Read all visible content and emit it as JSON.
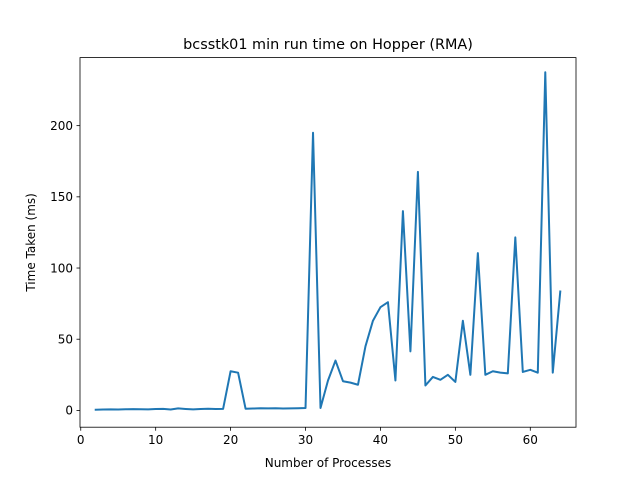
{
  "chart_data": {
    "type": "line",
    "title": "bcsstk01 min run time on Hopper (RMA)",
    "xlabel": "Number of Processes",
    "ylabel": "Time Taken (ms)",
    "xlim": [
      -0.1,
      66.1
    ],
    "ylim": [
      -11.8,
      247.8
    ],
    "xticks": [
      0,
      10,
      20,
      30,
      40,
      50,
      60
    ],
    "yticks": [
      0,
      50,
      100,
      150,
      200
    ],
    "grid": false,
    "color": "#1f77b4",
    "series": [
      {
        "x": [
          2,
          3,
          4,
          5,
          6,
          7,
          8,
          9,
          10,
          11,
          12,
          13,
          14,
          15,
          16,
          17,
          18,
          19,
          20,
          21,
          22,
          23,
          24,
          25,
          26,
          27,
          28,
          29,
          30,
          31,
          32,
          33,
          34,
          35,
          36,
          37,
          38,
          39,
          40,
          41,
          42,
          43,
          44,
          45,
          46,
          47,
          48,
          49,
          50,
          51,
          52,
          53,
          54,
          55,
          56,
          57,
          58,
          59,
          60,
          61,
          62,
          63,
          64
        ],
        "values": [
          0.5,
          0.6,
          0.7,
          0.6,
          0.8,
          0.9,
          0.8,
          0.7,
          1.0,
          1.1,
          0.6,
          1.4,
          1.0,
          0.7,
          1.0,
          1.2,
          1.0,
          1.1,
          27.5,
          26.5,
          1.2,
          1.3,
          1.5,
          1.4,
          1.5,
          1.3,
          1.4,
          1.5,
          1.7,
          195.0,
          1.7,
          21.0,
          35.0,
          20.5,
          19.5,
          18.0,
          45.0,
          63.0,
          72.5,
          76.0,
          21.0,
          140.0,
          41.5,
          167.5,
          17.5,
          23.5,
          21.5,
          25.0,
          20.0,
          63.0,
          25.0,
          110.5,
          25.0,
          27.5,
          26.5,
          26.0,
          121.5,
          27.0,
          28.5,
          26.5,
          237.5,
          26.5,
          83.5
        ]
      }
    ]
  }
}
